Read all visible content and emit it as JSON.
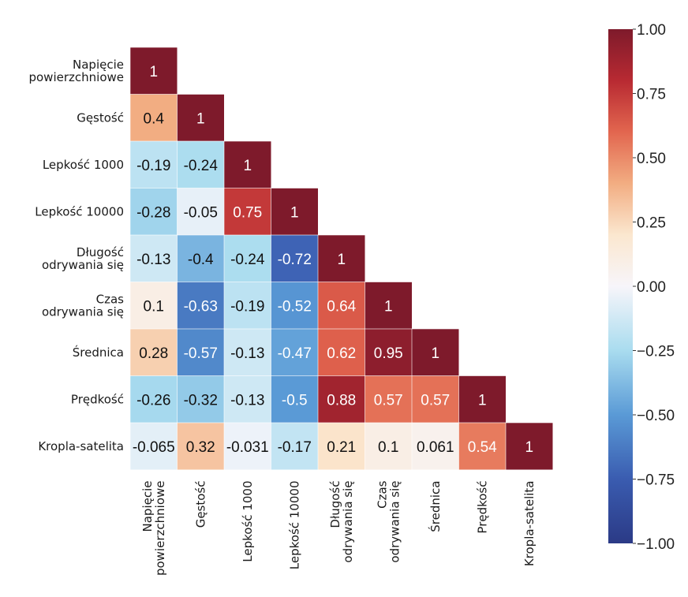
{
  "chart_data": {
    "type": "heatmap",
    "title": "",
    "variables": [
      "Napięcie powierzchniowe",
      "Gęstość",
      "Lepkość 1000",
      "Lepkość 10000",
      "Długość odrywania się",
      "Czas odrywania się",
      "Średnica",
      "Prędkość",
      "Kropla-satelita"
    ],
    "row_labels": [
      [
        "Napięcie",
        "powierzchniowe"
      ],
      [
        "Gęstość"
      ],
      [
        "Lepkość 1000"
      ],
      [
        "Lepkość 10000"
      ],
      [
        "Długość",
        "odrywania się"
      ],
      [
        "Czas",
        "odrywania się"
      ],
      [
        "Średnica"
      ],
      [
        "Prędkość"
      ],
      [
        "Kropla-satelita"
      ]
    ],
    "col_labels": [
      [
        "Napięcie",
        "powierzchniowe"
      ],
      [
        "Gęstość"
      ],
      [
        "Lepkość 1000"
      ],
      [
        "Lepkość 10000"
      ],
      [
        "Długość",
        "odrywania się"
      ],
      [
        "Czas",
        "odrywania się"
      ],
      [
        "Średnica"
      ],
      [
        "Prędkość"
      ],
      [
        "Kropla-satelita"
      ]
    ],
    "mask": "upper-triangle",
    "values": [
      [
        1
      ],
      [
        0.4,
        1
      ],
      [
        -0.19,
        -0.24,
        1
      ],
      [
        -0.28,
        -0.05,
        0.75,
        1
      ],
      [
        -0.13,
        -0.4,
        -0.24,
        -0.72,
        1
      ],
      [
        0.1,
        -0.63,
        -0.19,
        -0.52,
        0.64,
        1
      ],
      [
        0.28,
        -0.57,
        -0.13,
        -0.47,
        0.62,
        0.95,
        1
      ],
      [
        -0.26,
        -0.32,
        -0.13,
        -0.5,
        0.88,
        0.57,
        0.57,
        1
      ],
      [
        -0.065,
        0.32,
        -0.031,
        -0.17,
        0.21,
        0.1,
        0.061,
        0.54,
        1
      ]
    ],
    "value_labels": [
      [
        "1"
      ],
      [
        "0.4",
        "1"
      ],
      [
        "-0.19",
        "-0.24",
        "1"
      ],
      [
        "-0.28",
        "-0.05",
        "0.75",
        "1"
      ],
      [
        "-0.13",
        "-0.4",
        "-0.24",
        "-0.72",
        "1"
      ],
      [
        "0.1",
        "-0.63",
        "-0.19",
        "-0.52",
        "0.64",
        "1"
      ],
      [
        "0.28",
        "-0.57",
        "-0.13",
        "-0.47",
        "0.62",
        "0.95",
        "1"
      ],
      [
        "-0.26",
        "-0.32",
        "-0.13",
        "-0.5",
        "0.88",
        "0.57",
        "0.57",
        "1"
      ],
      [
        "-0.065",
        "0.32",
        "-0.031",
        "-0.17",
        "0.21",
        "0.1",
        "0.061",
        "0.54",
        "1"
      ]
    ],
    "colorbar": {
      "range": [
        -1.0,
        1.0
      ],
      "ticks": [
        1.0,
        0.75,
        0.5,
        0.25,
        0.0,
        -0.25,
        -0.5,
        -0.75,
        -1.0
      ],
      "tick_labels": [
        "1.00",
        "0.75",
        "0.50",
        "0.25",
        "0.00",
        "−0.25",
        "−0.50",
        "−0.75",
        "−1.00"
      ],
      "placement": "right"
    },
    "colormap": {
      "name": "RdYlBu-like diverging",
      "stops": [
        {
          "v": -1.0,
          "color": "#2b3a86"
        },
        {
          "v": -0.75,
          "color": "#3a5cb0"
        },
        {
          "v": -0.5,
          "color": "#5a9ad6"
        },
        {
          "v": -0.25,
          "color": "#a9dcef"
        },
        {
          "v": 0.0,
          "color": "#f7f5fa"
        },
        {
          "v": 0.2,
          "color": "#fbe7cf"
        },
        {
          "v": 0.4,
          "color": "#f2ad82"
        },
        {
          "v": 0.6,
          "color": "#e2664f"
        },
        {
          "v": 0.8,
          "color": "#b82a32"
        },
        {
          "v": 1.0,
          "color": "#7e1a2b"
        }
      ]
    },
    "xlabel": "",
    "ylabel": "",
    "grid": false
  }
}
